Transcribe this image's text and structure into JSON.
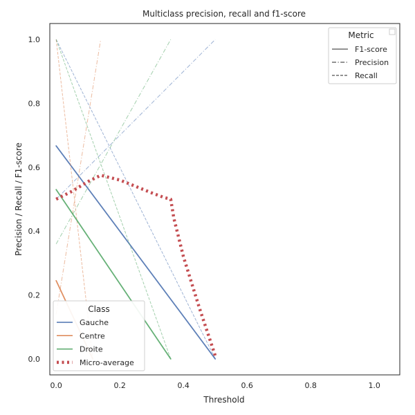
{
  "chart_data": {
    "type": "line",
    "title": "Multiclass precision, recall and f1-score",
    "xlabel": "Threshold",
    "ylabel": "Precision / Recall / F1-score",
    "xlim": [
      -0.02,
      1.08
    ],
    "ylim": [
      -0.05,
      1.05
    ],
    "xticks": [
      "0.0",
      "0.2",
      "0.4",
      "0.6",
      "0.8",
      "1.0"
    ],
    "yticks": [
      "0.0",
      "0.2",
      "0.4",
      "0.6",
      "0.8",
      "1.0"
    ],
    "grid": false,
    "colors": {
      "Gauche": "#4c72b0",
      "Centre": "#dd8452",
      "Droite": "#55a868",
      "Micro-average": "#c44e52"
    },
    "series": [
      {
        "class": "Gauche",
        "metric": "F1-score",
        "x": [
          0.0,
          0.5
        ],
        "y": [
          0.667,
          0.0
        ]
      },
      {
        "class": "Gauche",
        "metric": "Precision",
        "x": [
          0.0,
          0.5
        ],
        "y": [
          0.5,
          1.0
        ]
      },
      {
        "class": "Gauche",
        "metric": "Recall",
        "x": [
          0.0,
          0.5
        ],
        "y": [
          1.0,
          0.0
        ]
      },
      {
        "class": "Centre",
        "metric": "F1-score",
        "x": [
          0.0,
          0.115
        ],
        "y": [
          0.245,
          0.0
        ]
      },
      {
        "class": "Centre",
        "metric": "Precision",
        "x": [
          0.0,
          0.14
        ],
        "y": [
          0.14,
          1.0
        ]
      },
      {
        "class": "Centre",
        "metric": "Recall",
        "x": [
          0.0,
          0.115
        ],
        "y": [
          1.0,
          0.0
        ]
      },
      {
        "class": "Droite",
        "metric": "F1-score",
        "x": [
          0.0,
          0.36
        ],
        "y": [
          0.53,
          0.0
        ]
      },
      {
        "class": "Droite",
        "metric": "Precision",
        "x": [
          0.0,
          0.36
        ],
        "y": [
          0.36,
          1.0
        ]
      },
      {
        "class": "Droite",
        "metric": "Recall",
        "x": [
          0.0,
          0.36
        ],
        "y": [
          1.0,
          0.0
        ]
      },
      {
        "class": "Micro-average",
        "metric": "F1-score",
        "x": [
          0.0,
          0.05,
          0.1,
          0.14,
          0.2,
          0.25,
          0.3,
          0.34,
          0.36,
          0.37,
          0.4,
          0.45,
          0.5
        ],
        "y": [
          0.5,
          0.525,
          0.555,
          0.575,
          0.56,
          0.54,
          0.52,
          0.505,
          0.5,
          0.44,
          0.32,
          0.16,
          0.01
        ]
      }
    ],
    "legend_metric": {
      "title": "Metric",
      "placement": "top-right",
      "items": [
        {
          "label": "F1-score",
          "style": "solid"
        },
        {
          "label": "Precision",
          "style": "dashdot"
        },
        {
          "label": "Recall",
          "style": "dashed"
        }
      ]
    },
    "legend_class": {
      "title": "Class",
      "placement": "bottom-left",
      "items": [
        {
          "label": "Gauche",
          "style": "solid"
        },
        {
          "label": "Centre",
          "style": "solid"
        },
        {
          "label": "Droite",
          "style": "solid"
        },
        {
          "label": "Micro-average",
          "style": "dotted"
        }
      ]
    }
  }
}
